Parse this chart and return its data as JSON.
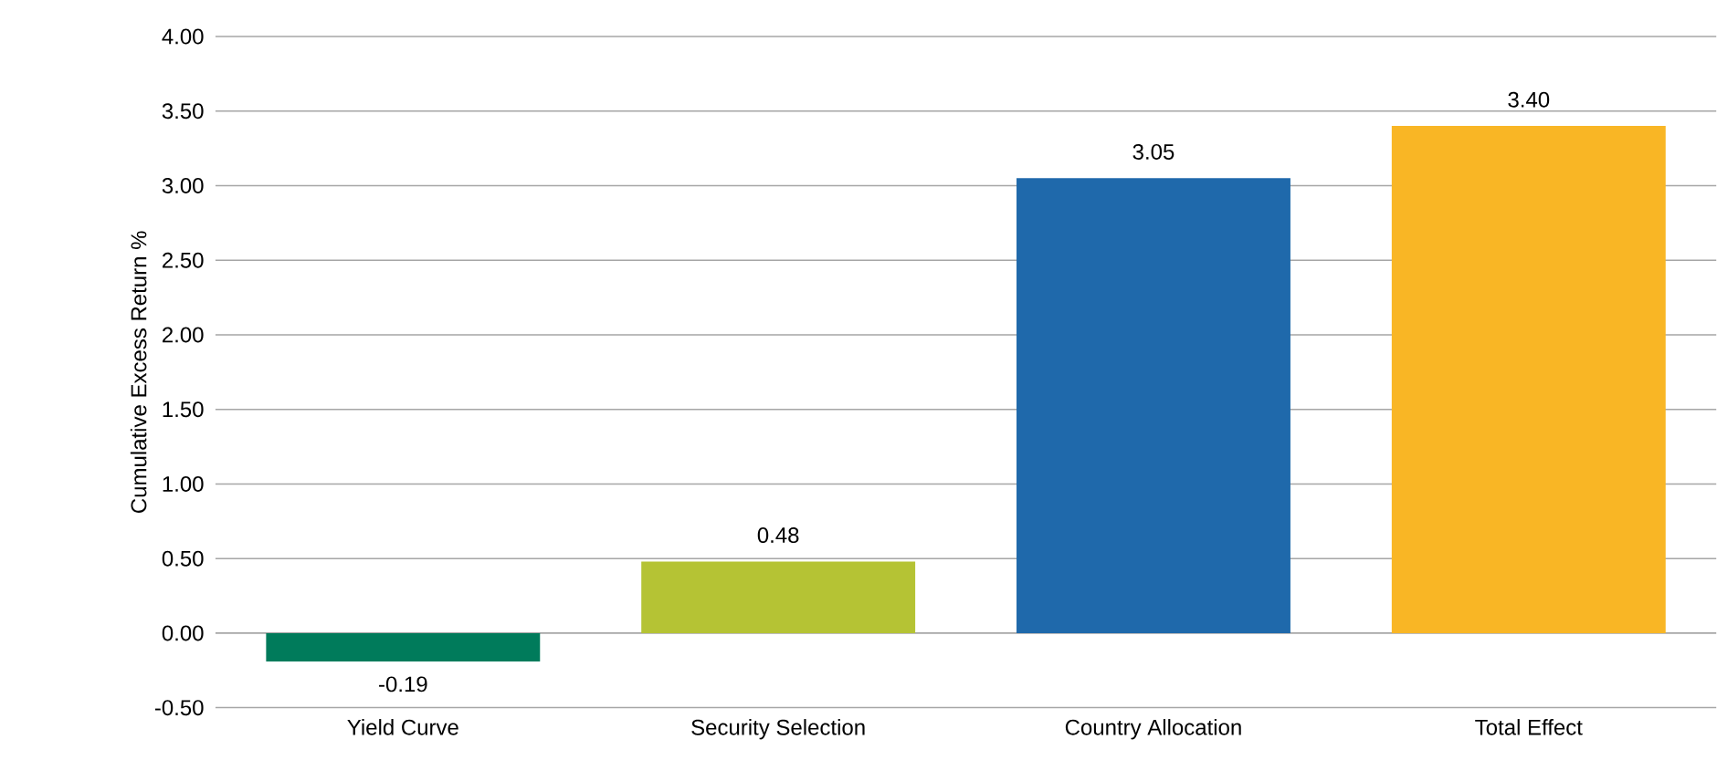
{
  "chart_data": {
    "type": "bar",
    "ylabel": "Cumulative Excess Return %",
    "categories": [
      "Yield Curve",
      "Security Selection",
      "Country Allocation",
      "Total Effect"
    ],
    "values": [
      -0.19,
      0.48,
      3.05,
      3.4
    ],
    "colors": [
      "#007b5b",
      "#b5c334",
      "#1f69ab",
      "#f9b625"
    ],
    "value_labels": [
      "-0.19",
      "0.48",
      "3.05",
      "3.40"
    ],
    "ylim": [
      -0.5,
      4.0
    ],
    "yticks": [
      {
        "value": -0.5,
        "label": "-0.50"
      },
      {
        "value": 0,
        "label": "0.00"
      },
      {
        "value": 0.5,
        "label": "0.50"
      },
      {
        "value": 1,
        "label": "1.00"
      },
      {
        "value": 1.5,
        "label": "1.50"
      },
      {
        "value": 2,
        "label": "2.00"
      },
      {
        "value": 2.5,
        "label": "2.50"
      },
      {
        "value": 3,
        "label": "3.00"
      },
      {
        "value": 3.5,
        "label": "3.50"
      },
      {
        "value": 4,
        "label": "4.00"
      }
    ],
    "grid": "y"
  }
}
